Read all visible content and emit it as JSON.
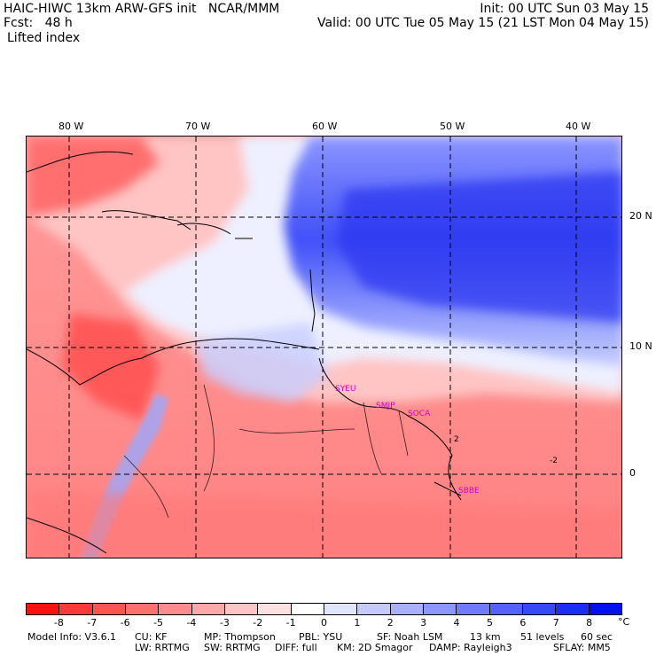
{
  "header": {
    "line1_left": "HAIC-HIWC 13km ARW-GFS init   NCAR/MMM",
    "line1_right": "Init: 00 UTC Sun 03 May 15",
    "line2_left": "Fcst:   48 h",
    "line2_right": "Valid: 00 UTC Tue 05 May 15 (21 LST Mon 04 May 15)",
    "field": "Lifted index"
  },
  "map": {
    "lon_labels": [
      "80 W",
      "70 W",
      "60 W",
      "50 W",
      "40 W"
    ],
    "lat_labels": [
      "20 N",
      "10 N",
      "0"
    ],
    "stations": [
      "SYEU",
      "SMJP",
      "SOCA",
      "SBBE"
    ],
    "contour_labels": [
      "2",
      "-2"
    ]
  },
  "colorbar": {
    "ticks": [
      "-8",
      "-7",
      "-6",
      "-5",
      "-4",
      "-3",
      "-2",
      "-1",
      "0",
      "1",
      "2",
      "3",
      "4",
      "5",
      "6",
      "7",
      "8"
    ],
    "unit": "°C",
    "colors": [
      "#ff1010",
      "#ff3838",
      "#ff5454",
      "#ff7070",
      "#ff8c8c",
      "#ffa8a8",
      "#ffc4c4",
      "#ffe0e0",
      "#ffffff",
      "#e0e4ff",
      "#c4caff",
      "#a8b0ff",
      "#8c96ff",
      "#707cff",
      "#5462ff",
      "#3848ff",
      "#1c2eff",
      "#0010f0"
    ]
  },
  "footer": {
    "line1": [
      "Model Info: V3.6.1",
      "CU: KF",
      "MP: Thompson",
      "PBL: YSU",
      "SF: Noah LSM",
      "13 km",
      "51 levels",
      "60 sec"
    ],
    "line2": [
      "LW: RRTMG",
      "SW: RRTMG",
      "DIFF: full",
      "KM: 2D Smagor",
      "DAMP: Rayleigh3",
      "SFLAY: MM5"
    ]
  }
}
